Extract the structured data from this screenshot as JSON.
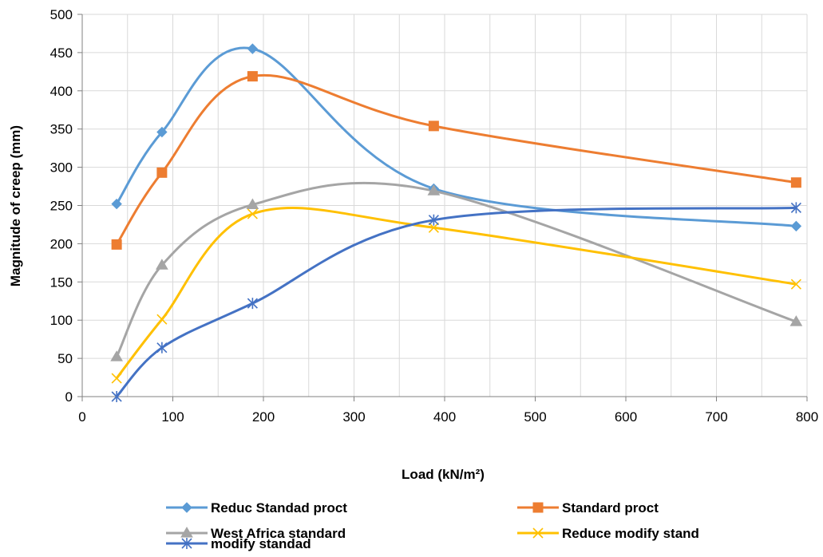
{
  "chart_data": {
    "type": "scatter",
    "title": "",
    "xlabel": "Load (kN/m²)",
    "ylabel": "Magnitude of creep (mm)",
    "xlim": [
      0,
      800
    ],
    "ylim": [
      0,
      500
    ],
    "x_ticks": [
      0,
      100,
      200,
      300,
      400,
      500,
      600,
      700,
      800
    ],
    "y_ticks": [
      0,
      50,
      100,
      150,
      200,
      250,
      300,
      350,
      400,
      450,
      500
    ],
    "grid": true,
    "smooth_lines": true,
    "legend_position": "bottom",
    "series": [
      {
        "name": "Reduc Standad proct",
        "color": "#5B9BD5",
        "marker": "diamond",
        "x": [
          38,
          88,
          188,
          388,
          788
        ],
        "y": [
          252,
          346,
          455,
          272,
          223
        ]
      },
      {
        "name": "Standard proct",
        "color": "#ED7D31",
        "marker": "square",
        "x": [
          38,
          88,
          188,
          388,
          788
        ],
        "y": [
          199,
          293,
          419,
          354,
          280
        ]
      },
      {
        "name": "West Africa standard",
        "color": "#A5A5A5",
        "marker": "triangle",
        "x": [
          38,
          88,
          188,
          388,
          788
        ],
        "y": [
          52,
          172,
          251,
          269,
          98
        ]
      },
      {
        "name": "Reduce modify stand",
        "color": "#FFC000",
        "marker": "x",
        "x": [
          38,
          88,
          188,
          388,
          788
        ],
        "y": [
          24,
          101,
          239,
          221,
          147
        ]
      },
      {
        "name": "modify standad",
        "color": "#4472C4",
        "marker": "star",
        "x": [
          38,
          88,
          188,
          388,
          788
        ],
        "y": [
          0,
          64,
          122,
          231,
          247
        ]
      }
    ]
  }
}
